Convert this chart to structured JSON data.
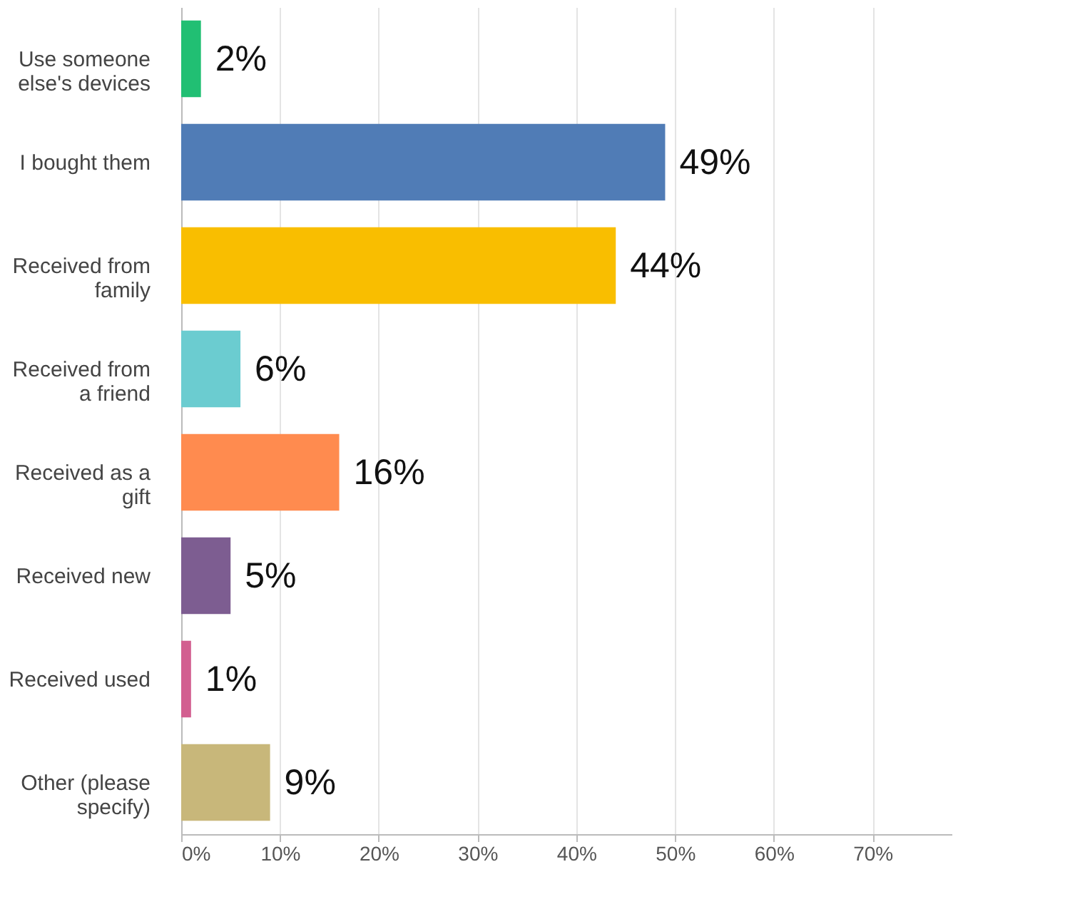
{
  "chart_data": {
    "type": "bar",
    "orientation": "horizontal",
    "categories": [
      "Use someone else's devices",
      "I bought them",
      "Received from family",
      "Received from a friend",
      "Received as a gift",
      "Received new",
      "Received used",
      "Other (please specify)"
    ],
    "values": [
      2,
      49,
      44,
      6,
      16,
      5,
      1,
      9
    ],
    "colors": [
      "#21bf73",
      "#507cb6",
      "#f9be00",
      "#6bccd0",
      "#ff8b4f",
      "#7d5d91",
      "#d25f90",
      "#c8b77a"
    ],
    "value_labels": [
      "2%",
      "49%",
      "44%",
      "6%",
      "16%",
      "5%",
      "1%",
      "9%"
    ],
    "xlim": [
      0,
      78
    ],
    "xticks": [
      {
        "value": 0,
        "label": "0%"
      },
      {
        "value": 10,
        "label": "10%"
      },
      {
        "value": 20,
        "label": "20%"
      },
      {
        "value": 30,
        "label": "30%"
      },
      {
        "value": 40,
        "label": "40%"
      },
      {
        "value": 50,
        "label": "50%"
      },
      {
        "value": 60,
        "label": "60%"
      },
      {
        "value": 70,
        "label": "70%"
      }
    ],
    "grid": "x"
  }
}
